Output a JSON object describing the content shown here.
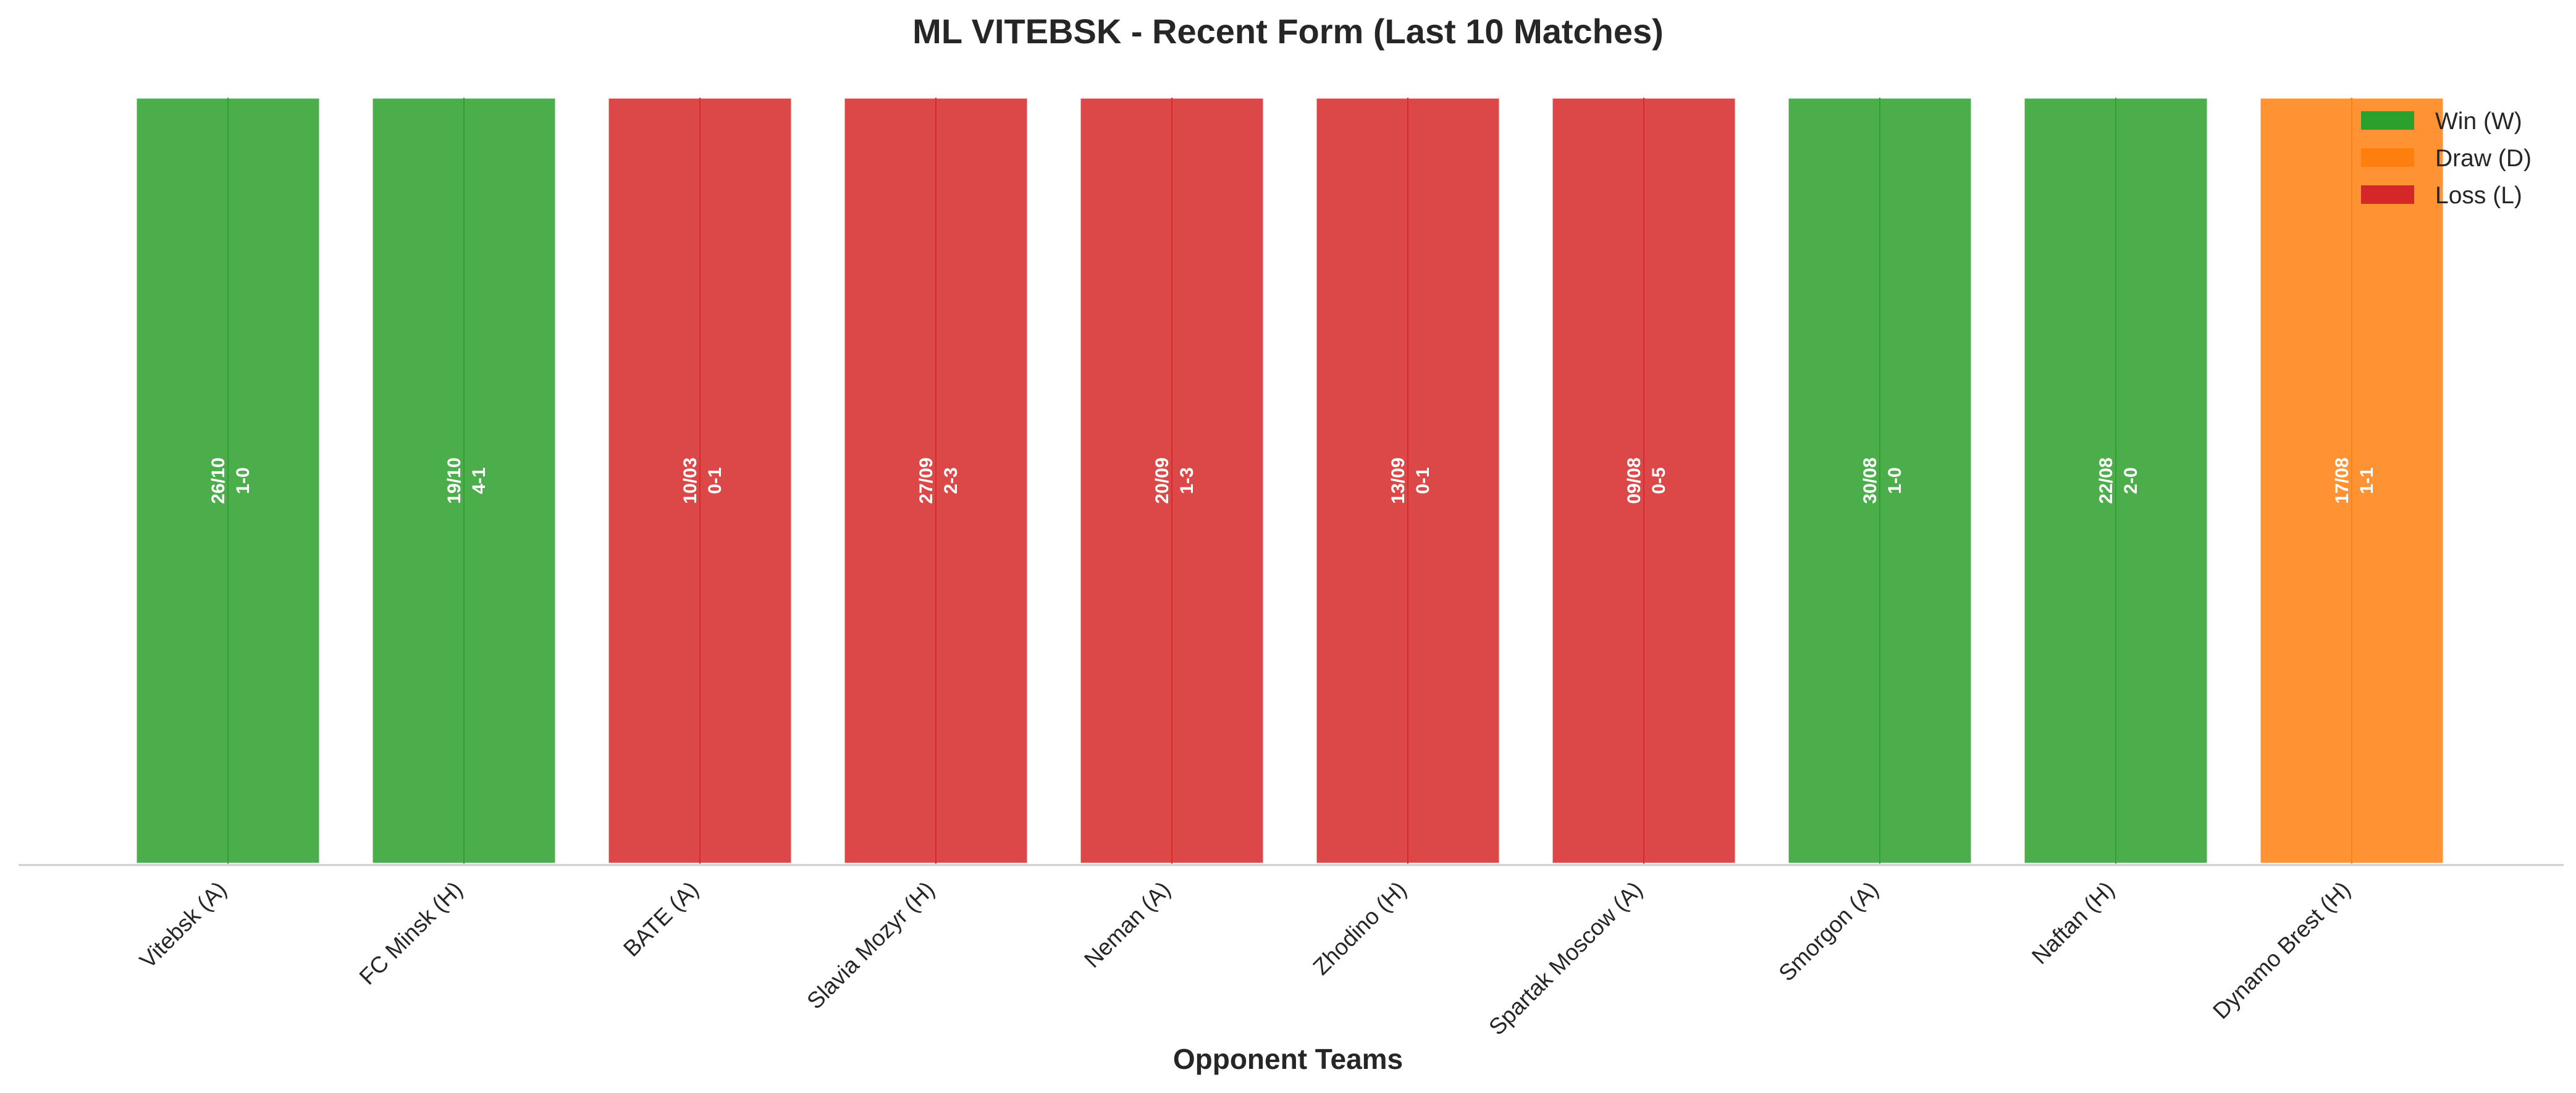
{
  "chart_data": {
    "type": "bar",
    "title": "ML VITEBSK - Recent Form (Last 10 Matches)",
    "xlabel": "Opponent Teams",
    "ylabel": "",
    "ylim": [
      0,
      1
    ],
    "grid": false,
    "legend_placement": "top-right",
    "categories": [
      "Vitebsk (A)",
      "FC Minsk (H)",
      "BATE (A)",
      "Slavia Mozyr (H)",
      "Neman (A)",
      "Zhodino (H)",
      "Spartak Moscow (A)",
      "Smorgon (A)",
      "Naftan (H)",
      "Dynamo Brest (H)"
    ],
    "values": [
      1,
      1,
      1,
      1,
      1,
      1,
      1,
      1,
      1,
      1
    ],
    "results": [
      "W",
      "W",
      "L",
      "L",
      "L",
      "L",
      "L",
      "W",
      "W",
      "D"
    ],
    "dates": [
      "26/10",
      "19/10",
      "10/03",
      "27/09",
      "20/09",
      "13/09",
      "09/08",
      "30/08",
      "22/08",
      "17/08"
    ],
    "scores": [
      "1-0",
      "4-1",
      "0-1",
      "2-3",
      "1-3",
      "0-1",
      "0-5",
      "1-0",
      "2-0",
      "1-1"
    ],
    "legend": [
      {
        "key": "W",
        "label": "Win (W)"
      },
      {
        "key": "D",
        "label": "Draw (D)"
      },
      {
        "key": "L",
        "label": "Loss (L)"
      }
    ],
    "colors": {
      "W": "#2ca02c",
      "D": "#ff7f0e",
      "L": "#d62728"
    }
  }
}
